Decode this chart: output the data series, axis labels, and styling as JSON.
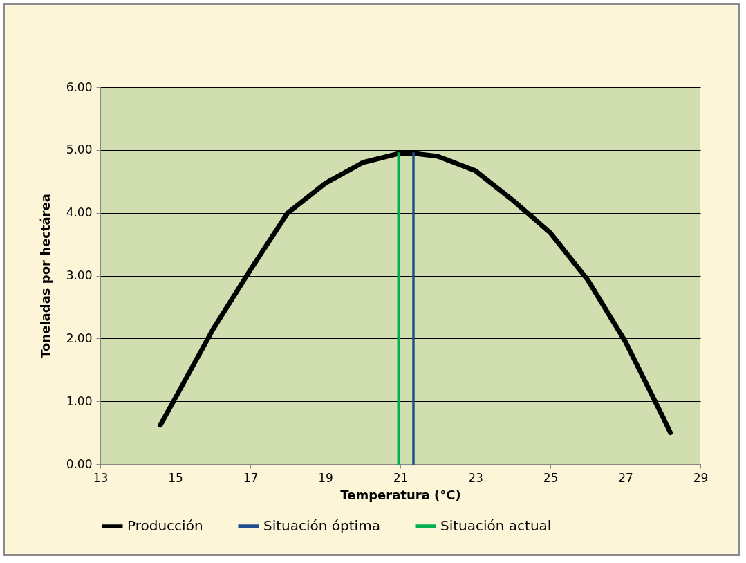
{
  "chart_data": {
    "type": "line",
    "xlabel": "Temperatura (°C)",
    "ylabel": "Toneladas por hectárea",
    "xlim": [
      13,
      29
    ],
    "xticks": [
      13,
      15,
      17,
      19,
      21,
      23,
      25,
      27,
      29
    ],
    "ylim": [
      0,
      6
    ],
    "yticks": [
      {
        "value": 0,
        "label": "0.00"
      },
      {
        "value": 1,
        "label": "1.00"
      },
      {
        "value": 2,
        "label": "2.00"
      },
      {
        "value": 3,
        "label": "3.00"
      },
      {
        "value": 4,
        "label": "4.00"
      },
      {
        "value": 5,
        "label": "5.00"
      },
      {
        "value": 6,
        "label": "6.00"
      }
    ],
    "grid": "y",
    "legend": "bottom",
    "marker": "none",
    "line_style": "solid",
    "series": [
      {
        "name": "Producción",
        "color": "#000000",
        "x": [
          14.6,
          15,
          16,
          17,
          18,
          19,
          20,
          21,
          21.3,
          22,
          23,
          24,
          25,
          26,
          27,
          28,
          28.2
        ],
        "values": [
          0.62,
          1.05,
          2.14,
          3.09,
          4.0,
          4.47,
          4.8,
          4.95,
          4.95,
          4.9,
          4.67,
          4.2,
          3.68,
          2.93,
          1.95,
          0.75,
          0.5
        ]
      },
      {
        "name": "Situación óptima",
        "color": "#1f4e8c",
        "x": [
          21.35,
          21.35
        ],
        "values": [
          0,
          4.95
        ]
      },
      {
        "name": "Situación actual",
        "color": "#00b050",
        "x": [
          20.95,
          20.95
        ],
        "values": [
          0,
          4.95
        ]
      }
    ]
  }
}
